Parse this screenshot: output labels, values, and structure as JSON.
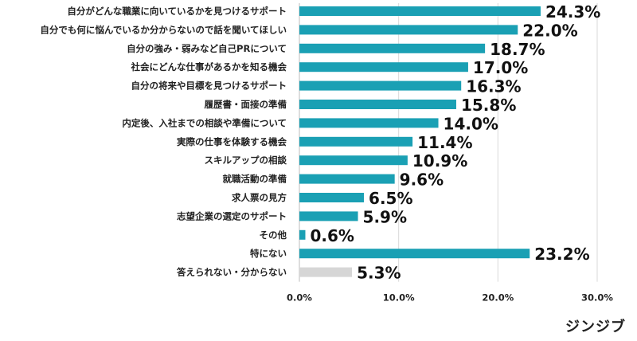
{
  "chart_data": {
    "type": "bar",
    "orientation": "horizontal",
    "categories": [
      "自分がどんな職業に向いているかを見つけるサポート",
      "自分でも何に悩んでいるか分からないので話を聞いてほしい",
      "自分の強み・弱みなど自己PRについて",
      "社会にどんな仕事があるかを知る機会",
      "自分の将来や目標を見つけるサポート",
      "履歴書・面接の準備",
      "内定後、入社までの相談や準備について",
      "実際の仕事を体験する機会",
      "スキルアップの相談",
      "就職活動の準備",
      "求人票の見方",
      "志望企業の選定のサポート",
      "その他",
      "特にない",
      "答えられない・分からない"
    ],
    "values": [
      24.3,
      22.0,
      18.7,
      17.0,
      16.3,
      15.8,
      14.0,
      11.4,
      10.9,
      9.6,
      6.5,
      5.9,
      0.6,
      23.2,
      5.3
    ],
    "value_labels": [
      "24.3%",
      "22.0%",
      "18.7%",
      "17.0%",
      "16.3%",
      "15.8%",
      "14.0%",
      "11.4%",
      "10.9%",
      "9.6%",
      "6.5%",
      "5.9%",
      "0.6%",
      "23.2%",
      "5.3%"
    ],
    "bar_colors": [
      "#1aa0b4",
      "#1aa0b4",
      "#1aa0b4",
      "#1aa0b4",
      "#1aa0b4",
      "#1aa0b4",
      "#1aa0b4",
      "#1aa0b4",
      "#1aa0b4",
      "#1aa0b4",
      "#1aa0b4",
      "#1aa0b4",
      "#1aa0b4",
      "#1aa0b4",
      "#d6d6d6"
    ],
    "xlim": [
      0,
      30
    ],
    "xticks": [
      0,
      10,
      20,
      30
    ],
    "xtick_labels": [
      "0.0%",
      "10.0%",
      "20.0%",
      "30.0%"
    ],
    "grid": true,
    "title": "",
    "xlabel": "",
    "ylabel": ""
  },
  "brand": "ジンジブ",
  "colors": {
    "grid": "#d9d9d9",
    "axis": "#bdbdbd"
  }
}
